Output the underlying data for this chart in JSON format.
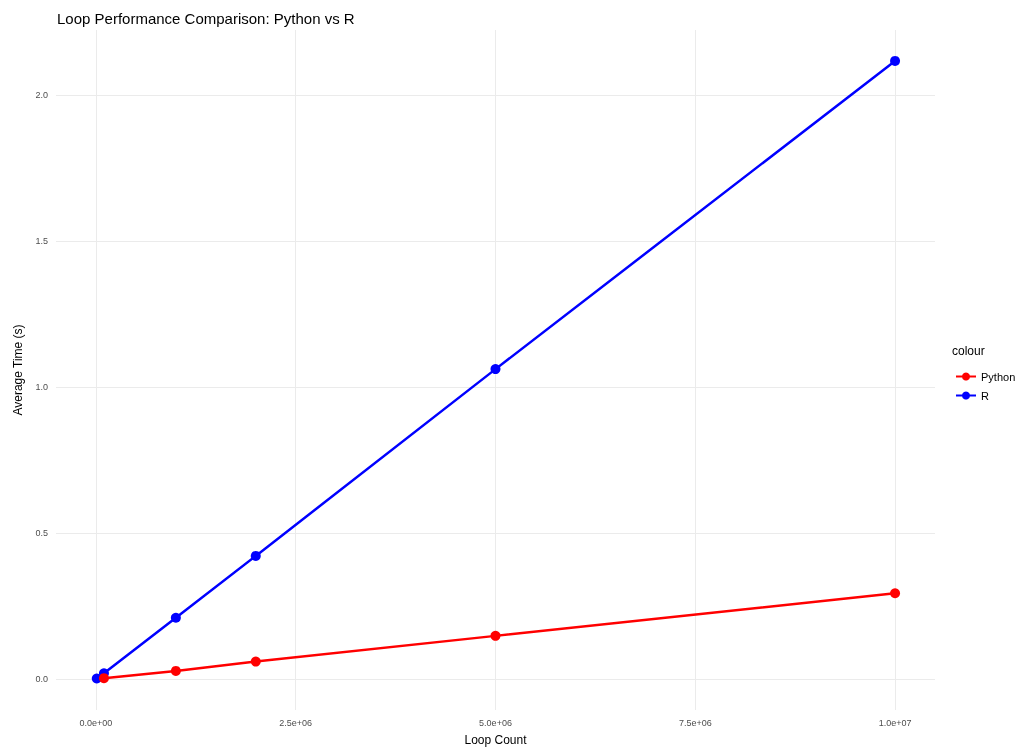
{
  "chart_data": {
    "type": "line",
    "title": "Loop Performance Comparison: Python vs R",
    "xlabel": "Loop Count",
    "ylabel": "Average Time (s)",
    "legend_title": "colour",
    "x": [
      10000,
      100000,
      1000000,
      2000000,
      5000000,
      10000000
    ],
    "series": [
      {
        "name": "Python",
        "color": "#ff0000",
        "values": [
          null,
          0.003,
          0.028,
          0.06,
          0.148,
          0.294
        ]
      },
      {
        "name": "R",
        "color": "#0000ff",
        "values": [
          0.002,
          0.02,
          0.21,
          0.422,
          1.062,
          2.118
        ]
      }
    ],
    "xlim": [
      -500000,
      10500000
    ],
    "xticks": [
      {
        "value": 0,
        "label": "0.0e+00"
      },
      {
        "value": 2500000,
        "label": "2.5e+06"
      },
      {
        "value": 5000000,
        "label": "5.0e+06"
      },
      {
        "value": 7500000,
        "label": "7.5e+06"
      },
      {
        "value": 10000000,
        "label": "1.0e+07"
      }
    ],
    "ylim": [
      -0.106,
      2.224
    ],
    "yticks": [
      {
        "value": 0,
        "label": "0.0"
      },
      {
        "value": 0.5,
        "label": "0.5"
      },
      {
        "value": 1,
        "label": "1.0"
      },
      {
        "value": 1.5,
        "label": "1.5"
      },
      {
        "value": 2,
        "label": "2.0"
      }
    ],
    "grid": true,
    "legend": "right",
    "marker": "circle",
    "line_style": "solid"
  }
}
